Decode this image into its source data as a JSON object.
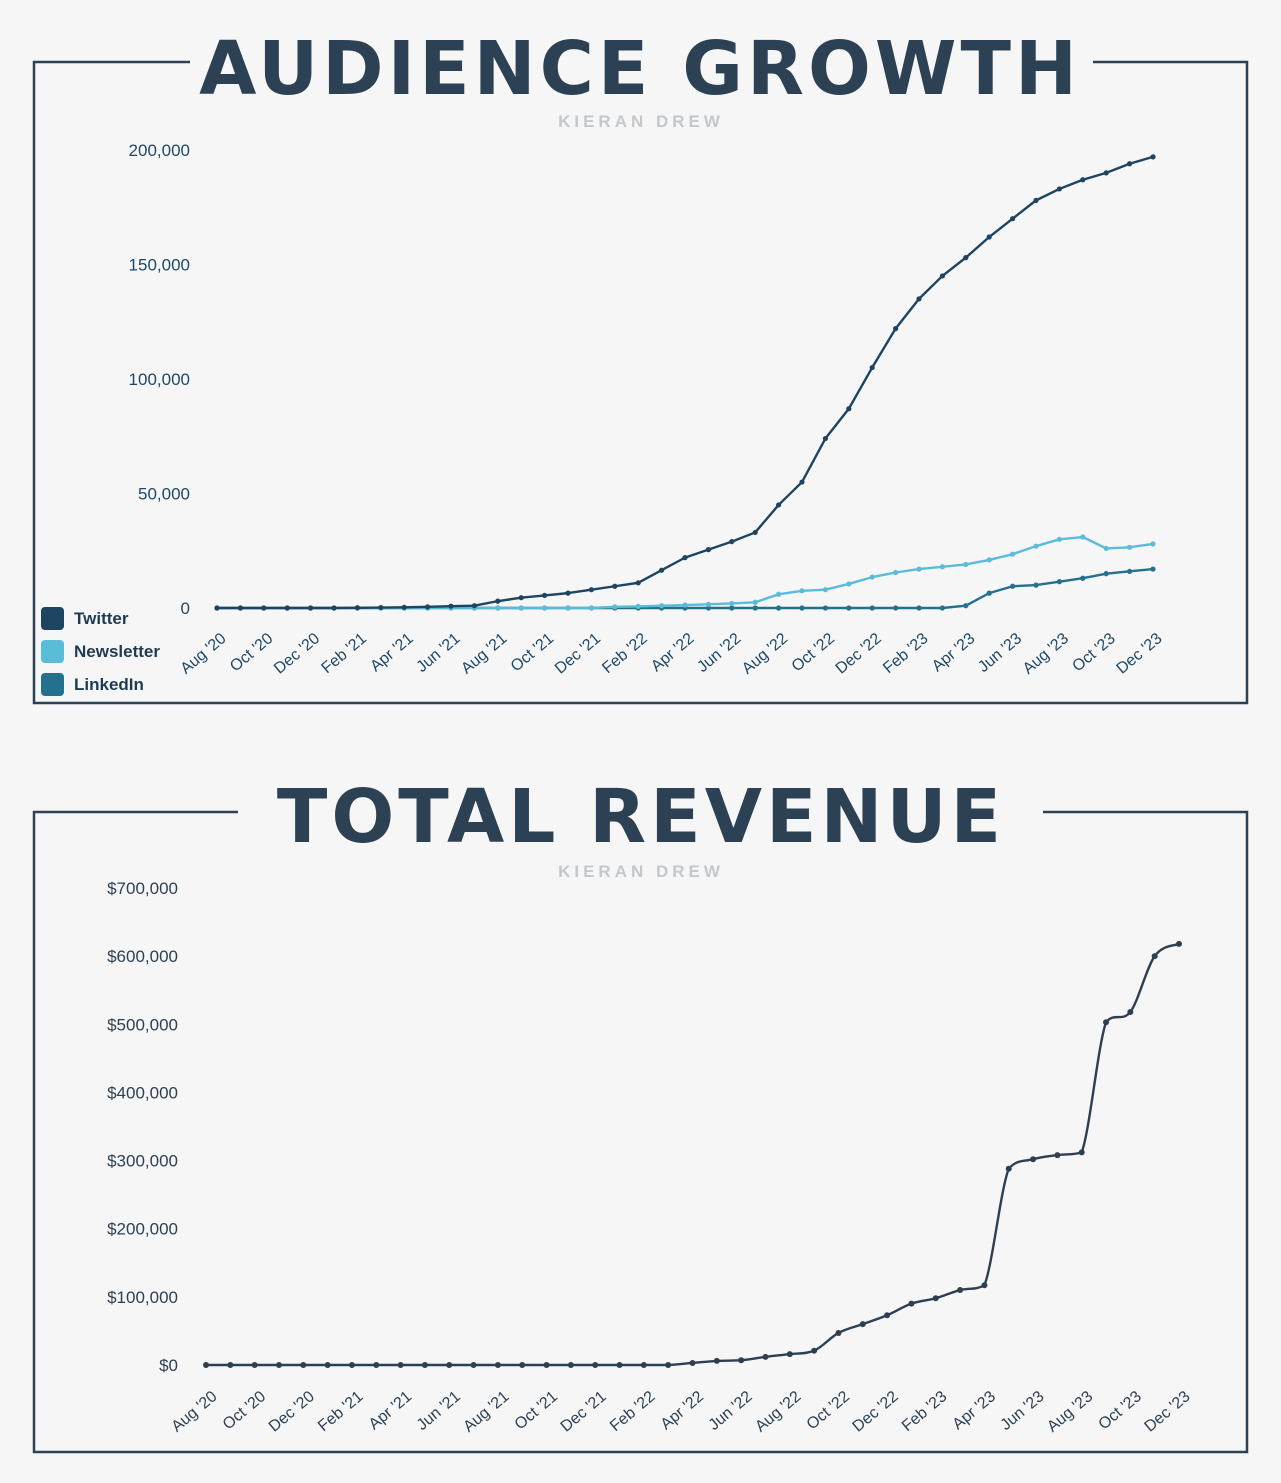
{
  "colors": {
    "twitter": "#1d4461",
    "newsletter": "#5bbcd9",
    "linkedin": "#23708f",
    "revenue": "#2d3f50"
  },
  "chart_data": [
    {
      "type": "line",
      "title": "AUDIENCE GROWTH",
      "subtitle": "KIERAN DREW",
      "xlabel": "",
      "ylabel": "",
      "ylim": [
        0,
        200000
      ],
      "yticks": [
        "0",
        "50,000",
        "100,000",
        "150,000",
        "200,000"
      ],
      "ytick_values": [
        0,
        50000,
        100000,
        150000,
        200000
      ],
      "x_tick_labels": [
        "Aug '20",
        "Oct '20",
        "Dec '20",
        "Feb '21",
        "Apr '21",
        "Jun '21",
        "Aug '21",
        "Oct '21",
        "Dec '21",
        "Feb '22",
        "Apr '22",
        "Jun '22",
        "Aug '22",
        "Oct '22",
        "Dec '22",
        "Feb '23",
        "Apr '23",
        "Jun '23",
        "Aug '23",
        "Oct '23",
        "Dec '23"
      ],
      "legend_position": "bottom-left",
      "grid": false,
      "series": [
        {
          "name": "Twitter",
          "values": [
            0,
            0,
            0,
            0,
            0,
            0,
            100,
            200,
            300,
            500,
            800,
            1000,
            3000,
            4500,
            5500,
            6500,
            8000,
            9500,
            11000,
            16500,
            22000,
            25500,
            29000,
            33000,
            45000,
            55000,
            74000,
            87000,
            105000,
            122000,
            135000,
            145000,
            153000,
            162000,
            170000,
            178000,
            183000,
            187000,
            190000,
            194000,
            197000
          ]
        },
        {
          "name": "Newsletter",
          "values": [
            0,
            0,
            0,
            0,
            0,
            0,
            0,
            0,
            0,
            0,
            0,
            0,
            0,
            0,
            0,
            0,
            0,
            500,
            700,
            1000,
            1300,
            1600,
            2000,
            2500,
            6000,
            7500,
            8000,
            10500,
            13500,
            15500,
            17000,
            18000,
            19000,
            21000,
            23500,
            27000,
            30000,
            31000,
            26000,
            26500,
            28000
          ]
        },
        {
          "name": "LinkedIn",
          "values": [
            0,
            0,
            0,
            0,
            0,
            0,
            0,
            0,
            0,
            0,
            0,
            0,
            0,
            0,
            0,
            0,
            0,
            0,
            0,
            0,
            0,
            0,
            0,
            0,
            0,
            0,
            0,
            0,
            0,
            0,
            0,
            0,
            1000,
            6500,
            9500,
            10000,
            11500,
            13000,
            15000,
            16000,
            17000
          ]
        }
      ]
    },
    {
      "type": "line",
      "title": "TOTAL REVENUE",
      "subtitle": "KIERAN DREW",
      "xlabel": "",
      "ylabel": "",
      "ylim": [
        0,
        700000
      ],
      "yticks": [
        "$0",
        "$100,000",
        "$200,000",
        "$300,000",
        "$400,000",
        "$500,000",
        "$600,000",
        "$700,000"
      ],
      "ytick_values": [
        0,
        100000,
        200000,
        300000,
        400000,
        500000,
        600000,
        700000
      ],
      "x_tick_labels": [
        "Aug '20",
        "Oct '20",
        "Dec '20",
        "Feb '21",
        "Apr '21",
        "Jun '21",
        "Aug '21",
        "Oct '21",
        "Dec '21",
        "Feb '22",
        "Apr '22",
        "Jun '22",
        "Aug '22",
        "Oct '22",
        "Dec '22",
        "Feb '23",
        "Apr '23",
        "Jun '23",
        "Aug '23",
        "Oct '23",
        "Dec '23"
      ],
      "grid": false,
      "series": [
        {
          "name": "",
          "values": [
            0,
            0,
            0,
            0,
            0,
            0,
            0,
            0,
            0,
            0,
            0,
            0,
            0,
            0,
            0,
            0,
            0,
            0,
            0,
            0,
            3000,
            6000,
            7000,
            12000,
            16000,
            21000,
            47000,
            60000,
            73000,
            90000,
            98000,
            110000,
            117000,
            288000,
            302000,
            308000,
            312000,
            503000,
            518000,
            600000,
            618000
          ]
        }
      ]
    }
  ]
}
